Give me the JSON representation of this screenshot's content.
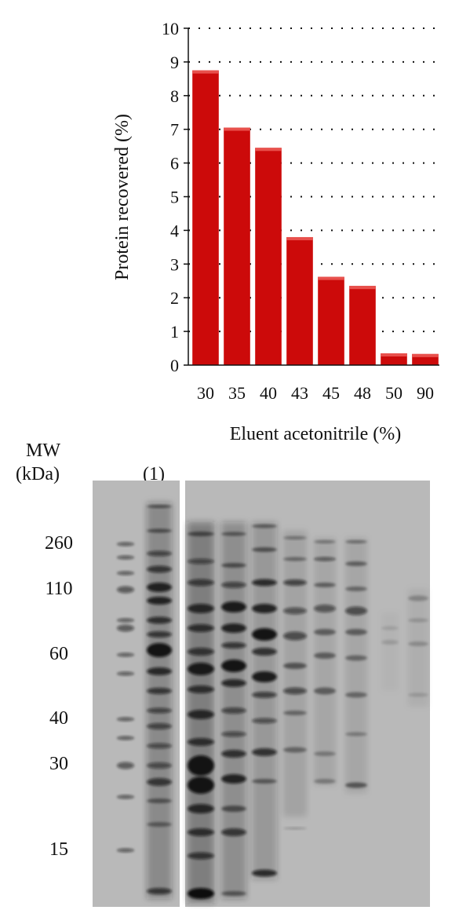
{
  "chart_data": {
    "type": "bar",
    "categories": [
      "30",
      "35",
      "40",
      "43",
      "45",
      "48",
      "50",
      "90"
    ],
    "values": [
      8.75,
      7.05,
      6.45,
      3.8,
      2.62,
      2.35,
      0.35,
      0.33
    ],
    "xlabel": "Eluent acetonitrile (%)",
    "ylabel": "Protein recovered (%)",
    "ylim": [
      0,
      10
    ],
    "yticks": [
      "0",
      "1",
      "2",
      "3",
      "4",
      "5",
      "6",
      "7",
      "8",
      "9",
      "10"
    ],
    "grid": "dotted horizontal",
    "bar_color": "#cc0a0a"
  },
  "gel": {
    "mw_header": "MW",
    "mw_unit": "(kDa)",
    "lane_label": "(1)",
    "markers": [
      "260",
      "110",
      "60",
      "40",
      "30",
      "15"
    ],
    "background_color": "#b9b9b9"
  }
}
